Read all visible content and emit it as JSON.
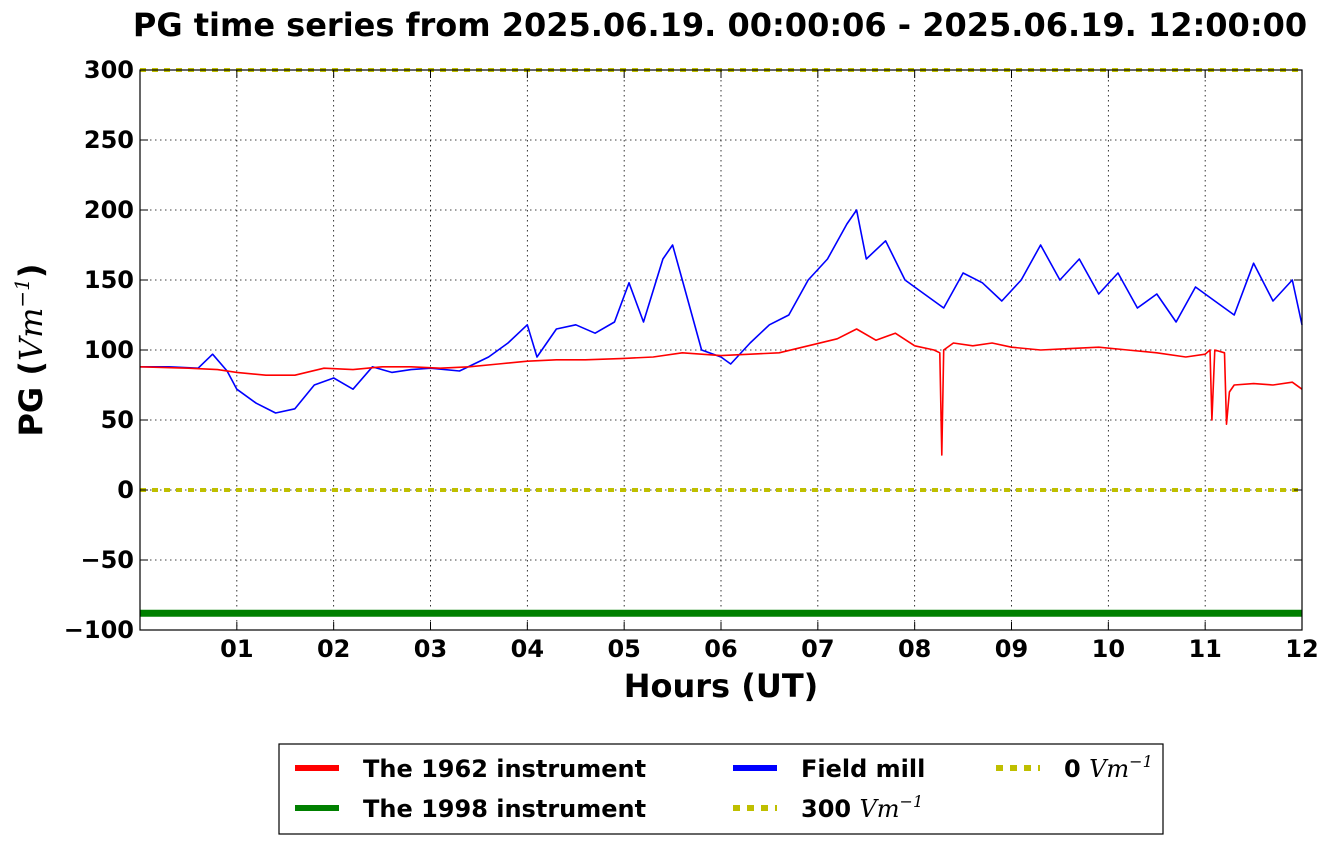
{
  "chart_data": {
    "type": "line",
    "title": "PG time series from 2025.06.19. 00:00:06 - 2025.06.19. 12:00:00",
    "xlabel": "Hours (UT)",
    "ylabel_prefix": "PG (",
    "ylabel_unit": "Vm",
    "ylabel_exp": "−1",
    "ylabel_suffix": ")",
    "xlim": [
      0,
      12
    ],
    "ylim": [
      -100,
      300
    ],
    "xticks": [
      {
        "v": 1,
        "label": "01"
      },
      {
        "v": 2,
        "label": "02"
      },
      {
        "v": 3,
        "label": "03"
      },
      {
        "v": 4,
        "label": "04"
      },
      {
        "v": 5,
        "label": "05"
      },
      {
        "v": 6,
        "label": "06"
      },
      {
        "v": 7,
        "label": "07"
      },
      {
        "v": 8,
        "label": "08"
      },
      {
        "v": 9,
        "label": "09"
      },
      {
        "v": 10,
        "label": "10"
      },
      {
        "v": 11,
        "label": "11"
      },
      {
        "v": 12,
        "label": "12"
      }
    ],
    "yticks": [
      {
        "v": 300,
        "label": "300"
      },
      {
        "v": 250,
        "label": "250"
      },
      {
        "v": 200,
        "label": "200"
      },
      {
        "v": 150,
        "label": "150"
      },
      {
        "v": 100,
        "label": "100"
      },
      {
        "v": 50,
        "label": "50"
      },
      {
        "v": 0,
        "label": "0"
      },
      {
        "v": -50,
        "label": "−50"
      },
      {
        "v": -100,
        "label": "−100"
      }
    ],
    "grid": true,
    "legend_position": "below plot",
    "series": [
      {
        "name": "The 1962 instrument",
        "color": "#ff0000",
        "x": [
          0,
          0.5,
          0.8,
          1.0,
          1.3,
          1.6,
          1.9,
          2.2,
          2.5,
          2.8,
          3.1,
          3.4,
          3.7,
          4.0,
          4.3,
          4.6,
          5.0,
          5.3,
          5.6,
          6.0,
          6.3,
          6.6,
          6.9,
          7.2,
          7.4,
          7.6,
          7.8,
          8.0,
          8.2,
          8.26,
          8.28,
          8.3,
          8.4,
          8.6,
          8.8,
          9.0,
          9.3,
          9.6,
          9.9,
          10.2,
          10.5,
          10.8,
          11.0,
          11.05,
          11.07,
          11.1,
          11.2,
          11.22,
          11.25,
          11.3,
          11.5,
          11.7,
          11.9,
          12.0
        ],
        "y": [
          88,
          87,
          86,
          84,
          82,
          82,
          87,
          86,
          88,
          88,
          87,
          88,
          90,
          92,
          93,
          93,
          94,
          95,
          98,
          96,
          97,
          98,
          103,
          108,
          115,
          107,
          112,
          103,
          100,
          98,
          25,
          100,
          105,
          103,
          105,
          102,
          100,
          101,
          102,
          100,
          98,
          95,
          97,
          100,
          50,
          100,
          98,
          47,
          70,
          75,
          76,
          75,
          77,
          72
        ]
      },
      {
        "name": "The 1998 instrument",
        "color": "#008000",
        "x": [
          0,
          12
        ],
        "y": [
          -88,
          -88
        ]
      },
      {
        "name": "Field mill",
        "color": "#0000ff",
        "x": [
          0,
          0.3,
          0.6,
          0.75,
          0.9,
          1.0,
          1.2,
          1.4,
          1.6,
          1.8,
          2.0,
          2.2,
          2.4,
          2.6,
          2.8,
          3.0,
          3.3,
          3.6,
          3.8,
          4.0,
          4.1,
          4.3,
          4.5,
          4.7,
          4.9,
          5.05,
          5.2,
          5.4,
          5.5,
          5.6,
          5.8,
          6.0,
          6.1,
          6.3,
          6.5,
          6.7,
          6.9,
          7.1,
          7.3,
          7.4,
          7.5,
          7.7,
          7.9,
          8.1,
          8.3,
          8.5,
          8.7,
          8.9,
          9.1,
          9.3,
          9.5,
          9.7,
          9.9,
          10.1,
          10.3,
          10.5,
          10.7,
          10.9,
          11.1,
          11.3,
          11.5,
          11.7,
          11.9,
          12.0
        ],
        "y": [
          88,
          88,
          87,
          97,
          85,
          72,
          62,
          55,
          58,
          75,
          80,
          72,
          88,
          84,
          86,
          87,
          85,
          95,
          105,
          118,
          95,
          115,
          118,
          112,
          120,
          148,
          120,
          165,
          175,
          150,
          100,
          95,
          90,
          105,
          118,
          125,
          150,
          165,
          190,
          200,
          165,
          178,
          150,
          140,
          130,
          155,
          148,
          135,
          150,
          175,
          150,
          165,
          140,
          155,
          130,
          140,
          120,
          145,
          135,
          125,
          162,
          135,
          150,
          118
        ]
      },
      {
        "name": "300 Vm⁻¹",
        "label_prefix": "300 ",
        "color": "#bfbf00",
        "style": "dotted",
        "x": [
          0,
          12
        ],
        "y": [
          300,
          300
        ]
      },
      {
        "name": "0 Vm⁻¹",
        "label_prefix": "0 ",
        "color": "#bfbf00",
        "style": "dotted",
        "x": [
          0,
          12
        ],
        "y": [
          0,
          0
        ]
      }
    ]
  }
}
